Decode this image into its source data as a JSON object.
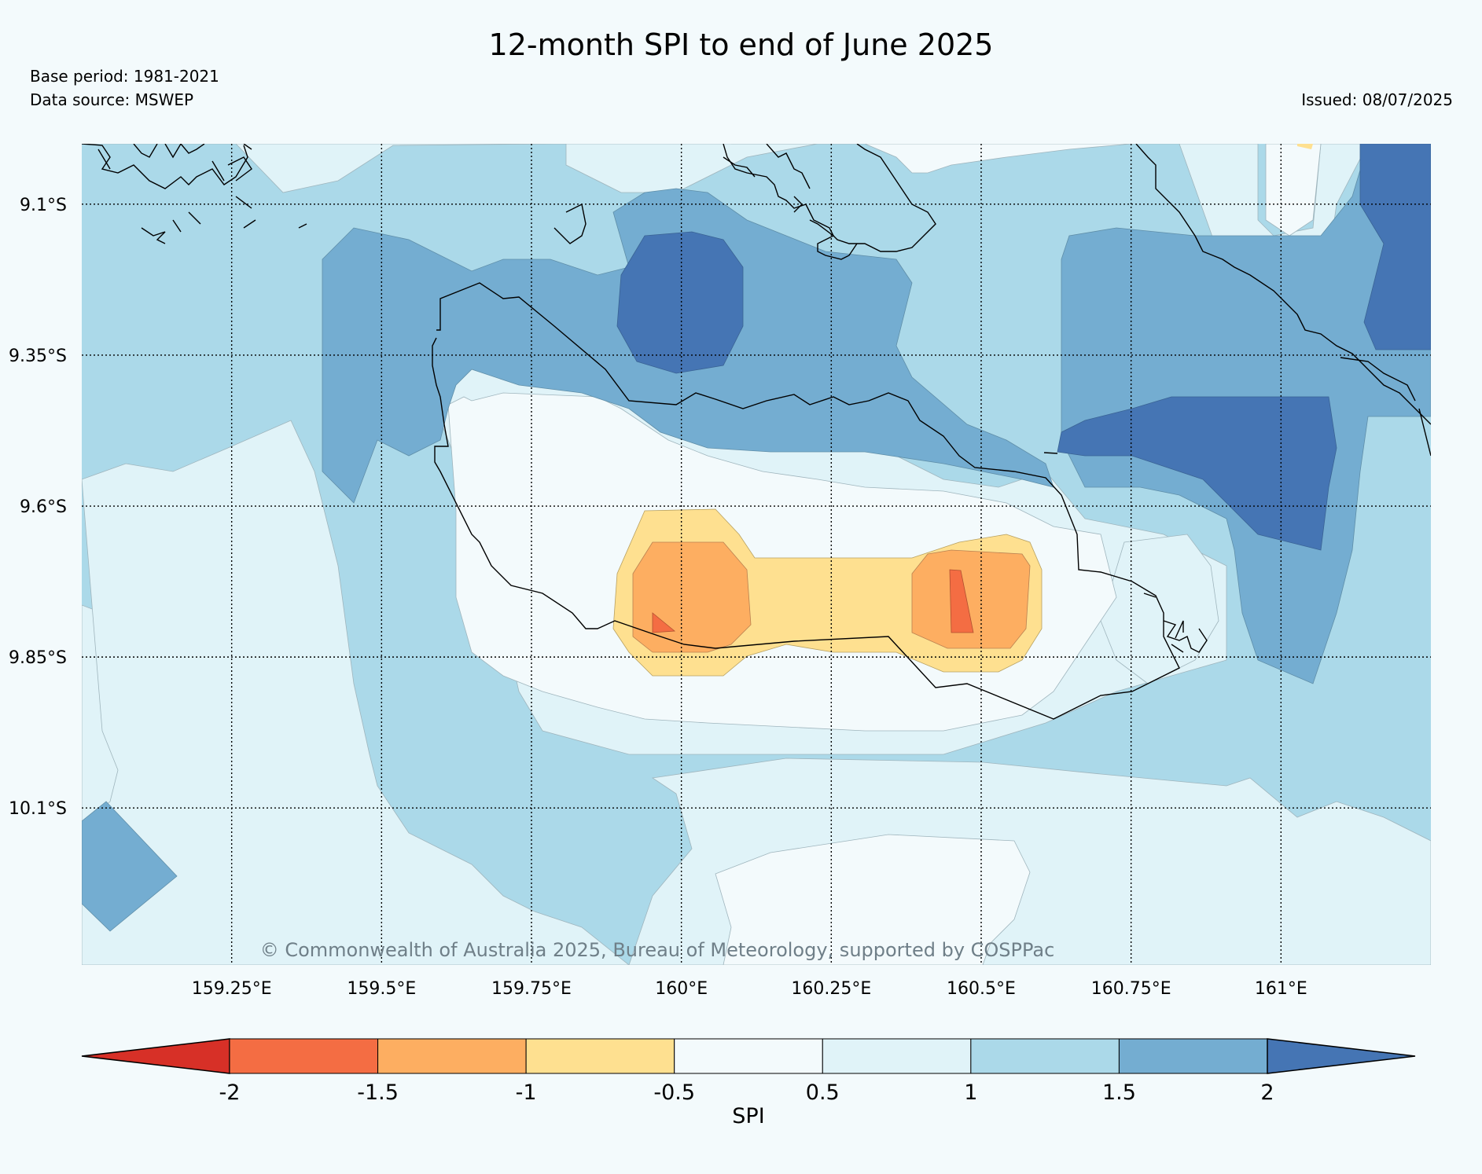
{
  "title": "12-month SPI to end of June 2025",
  "base_period": "Base period: 1981-2021",
  "data_source": "Data source: MSWEP",
  "issued": "Issued: 08/07/2025",
  "copyright": "© Commonwealth of Australia 2025, Bureau of Meteorology, supported by COSPPac",
  "map": {
    "lon_range": [
      159.0,
      161.25
    ],
    "lat_range": [
      -9.0,
      -10.36
    ],
    "lat_ticks": [
      {
        "value": -9.1,
        "label": "9.1°S"
      },
      {
        "value": -9.35,
        "label": "9.35°S"
      },
      {
        "value": -9.6,
        "label": "9.6°S"
      },
      {
        "value": -9.85,
        "label": "9.85°S"
      },
      {
        "value": -10.1,
        "label": "10.1°S"
      }
    ],
    "lon_ticks": [
      {
        "value": 159.25,
        "label": "159.25°E"
      },
      {
        "value": 159.5,
        "label": "159.5°E"
      },
      {
        "value": 159.75,
        "label": "159.75°E"
      },
      {
        "value": 160.0,
        "label": "160°E"
      },
      {
        "value": 160.25,
        "label": "160.25°E"
      },
      {
        "value": 160.5,
        "label": "160.5°E"
      },
      {
        "value": 160.75,
        "label": "160.75°E"
      },
      {
        "value": 161.0,
        "label": "161°E"
      }
    ],
    "grid": true,
    "grid_style": "dotted"
  },
  "colorbar": {
    "label": "SPI",
    "extend": "both",
    "bounds": [
      -2,
      -1.5,
      -1,
      -0.5,
      0.5,
      1,
      1.5,
      2
    ],
    "tick_labels": [
      "-2",
      "-1.5",
      "-1",
      "-0.5",
      "0.5",
      "1",
      "1.5",
      "2"
    ],
    "colors": [
      "#d73027",
      "#f46d43",
      "#fdae61",
      "#fee090",
      "#f3fafc",
      "#e0f3f8",
      "#abd9e9",
      "#74add1",
      "#4575b4"
    ]
  },
  "spi_classes": {
    "lt_-2": "#d73027",
    "-2_-1.5": "#f46d43",
    "-1.5_-1": "#fdae61",
    "-1_-0.5": "#fee090",
    "-0.5_0.5": "#f3fafc",
    "0.5_1": "#e0f3f8",
    "1_1.5": "#abd9e9",
    "1.5_2": "#74add1",
    "gt_2": "#4575b4"
  }
}
